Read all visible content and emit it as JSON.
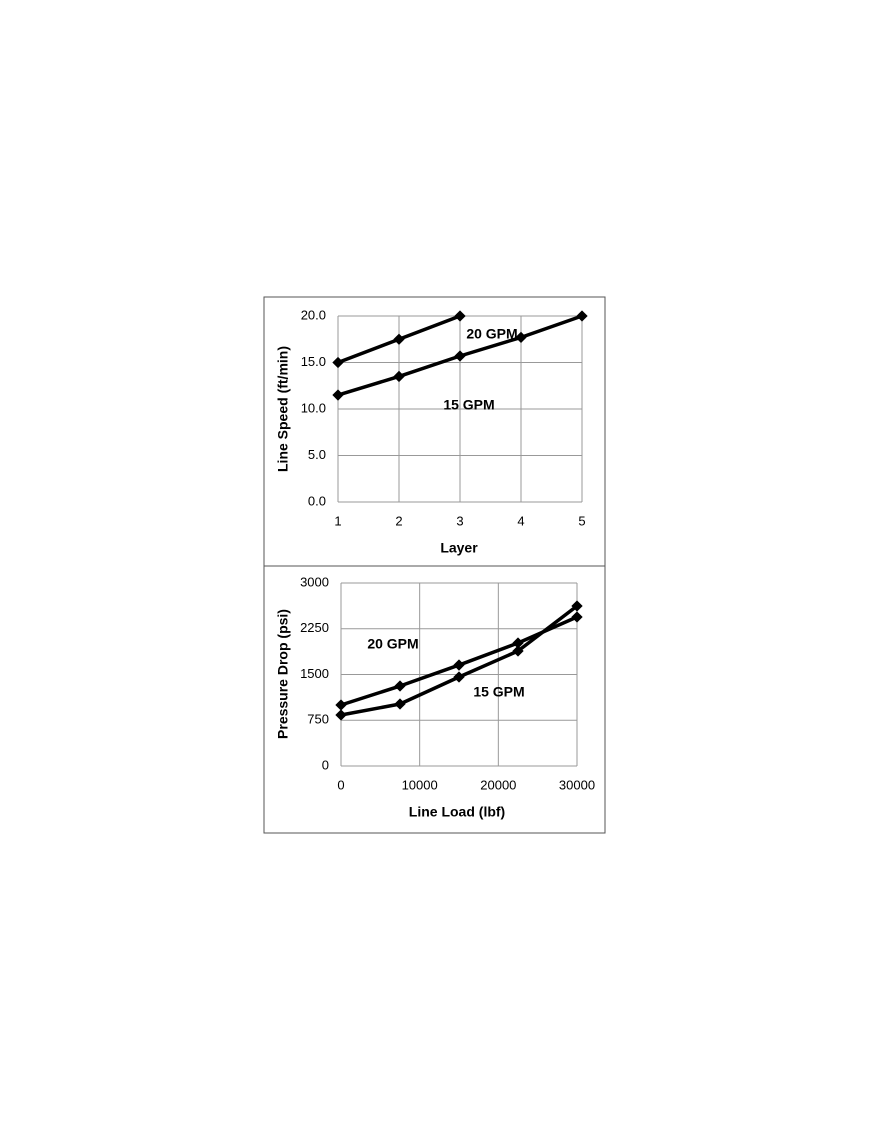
{
  "chart_data": [
    {
      "type": "line",
      "x_label": "Layer",
      "y_label": "Line  Speed (ft/min)",
      "x": [
        1,
        2,
        3,
        4,
        5
      ],
      "xlim": [
        1,
        5
      ],
      "xticks": [
        1,
        2,
        3,
        4,
        5
      ],
      "ylim": [
        0,
        20
      ],
      "yticks": [
        {
          "value": 0,
          "label": "0.0"
        },
        {
          "value": 5,
          "label": "5.0"
        },
        {
          "value": 10,
          "label": "10.0"
        },
        {
          "value": 15,
          "label": "15.0"
        },
        {
          "value": 20,
          "label": "20.0"
        }
      ],
      "grid": true,
      "series": [
        {
          "name": "20 GPM",
          "color": "#000000",
          "values": [
            15.0,
            17.5,
            20.0,
            null,
            null
          ]
        },
        {
          "name": "15 GPM",
          "color": "#000000",
          "values": [
            11.5,
            13.5,
            15.7,
            17.7,
            20.0
          ]
        }
      ]
    },
    {
      "type": "line",
      "x_label": "Line Load (lbf)",
      "y_label": "Pressure Drop  (psi)",
      "x": [
        0,
        7500,
        15000,
        22500,
        30000
      ],
      "xlim": [
        0,
        30000
      ],
      "xticks": [
        0,
        10000,
        20000,
        30000
      ],
      "ylim": [
        0,
        3000
      ],
      "yticks": [
        0,
        750,
        1500,
        2250,
        3000
      ],
      "grid": true,
      "series": [
        {
          "name": "20 GPM",
          "color": "#000000",
          "values": [
            1000,
            1311,
            1655,
            2016,
            2443
          ]
        },
        {
          "name": "15 GPM",
          "color": "#000000",
          "values": [
            836,
            1016,
            1459,
            1885,
            2623
          ]
        }
      ]
    }
  ]
}
